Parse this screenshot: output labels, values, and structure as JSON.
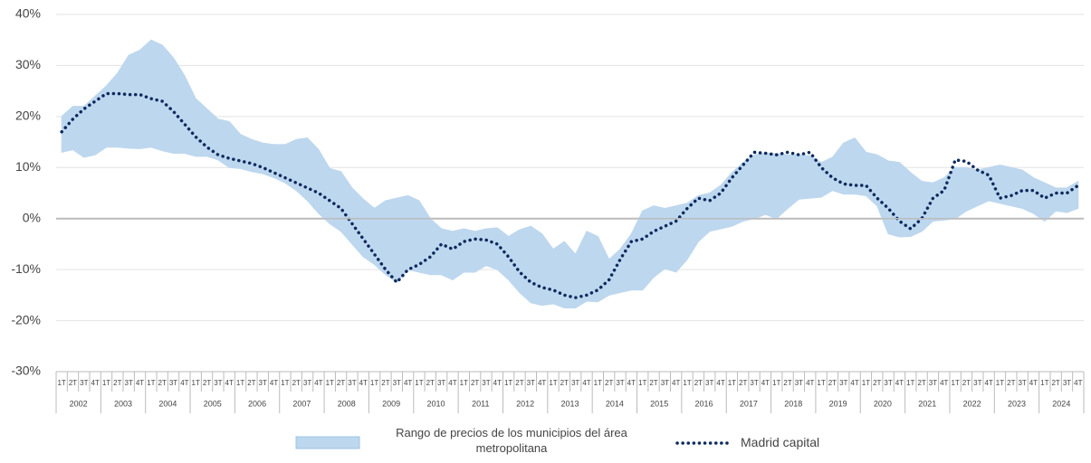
{
  "chart_data": {
    "type": "band_line",
    "ylim": [
      -30,
      40
    ],
    "yticks": [
      {
        "value": -30,
        "label": "-30%"
      },
      {
        "value": -20,
        "label": "-20%"
      },
      {
        "value": -10,
        "label": "-10%"
      },
      {
        "value": 0,
        "label": "0%"
      },
      {
        "value": 10,
        "label": "10%"
      },
      {
        "value": 20,
        "label": "20%"
      },
      {
        "value": 30,
        "label": "30%"
      },
      {
        "value": 40,
        "label": "40%"
      }
    ],
    "grid": true,
    "categories": [
      "1T",
      "2T",
      "3T",
      "4T",
      "1T",
      "2T",
      "3T",
      "4T",
      "1T",
      "2T",
      "3T",
      "4T",
      "1T",
      "2T",
      "3T",
      "4T",
      "1T",
      "2T",
      "3T",
      "4T",
      "1T",
      "2T",
      "3T",
      "4T",
      "1T",
      "2T",
      "3T",
      "4T",
      "1T",
      "2T",
      "3T",
      "4T",
      "1T",
      "2T",
      "3T",
      "4T",
      "1T",
      "2T",
      "3T",
      "4T",
      "1T",
      "2T",
      "3T",
      "4T",
      "1T",
      "2T",
      "3T",
      "4T",
      "1T",
      "2T",
      "3T",
      "4T",
      "1T",
      "2T",
      "3T",
      "4T",
      "1T",
      "2T",
      "3T",
      "4T",
      "1T",
      "2T",
      "3T",
      "4T",
      "1T",
      "2T",
      "3T",
      "4T",
      "1T",
      "2T",
      "3T",
      "4T",
      "1T",
      "2T",
      "3T",
      "4T",
      "1T",
      "2T",
      "3T",
      "4T",
      "1T",
      "2T",
      "3T",
      "4T",
      "1T",
      "2T",
      "3T",
      "4T",
      "1T",
      "2T",
      "3T",
      "4T"
    ],
    "years": [
      "2002",
      "2003",
      "2004",
      "2005",
      "2006",
      "2007",
      "2008",
      "2009",
      "2010",
      "2011",
      "2012",
      "2013",
      "2014",
      "2015",
      "2016",
      "2017",
      "2018",
      "2019",
      "2020",
      "2021",
      "2022",
      "2023",
      "2024"
    ],
    "series": [
      {
        "name": "Rango de precios de los municipios del área metropolitana",
        "kind": "range",
        "color": "#bdd7ee",
        "low": [
          13,
          13.5,
          12,
          12.5,
          14,
          14,
          13.8,
          13.7,
          14,
          13.3,
          12.8,
          12.8,
          12.2,
          12.2,
          11.5,
          10,
          9.8,
          9.2,
          8.8,
          8,
          7,
          5.5,
          3.5,
          1,
          -1,
          -2.5,
          -5,
          -7.5,
          -9,
          -11,
          -12.5,
          -10,
          -10.5,
          -11,
          -11,
          -12,
          -10.5,
          -10.5,
          -9.2,
          -10,
          -12,
          -14.5,
          -16.5,
          -17,
          -16.7,
          -17.5,
          -17.5,
          -16.2,
          -16.3,
          -15,
          -14.5,
          -14,
          -14,
          -11.5,
          -9.8,
          -10.5,
          -8,
          -4.5,
          -2.5,
          -2,
          -1.5,
          -0.5,
          0,
          0.8,
          0,
          2,
          3.8,
          4,
          4.2,
          5.5,
          4.8,
          4.8,
          4.5,
          2.5,
          -3,
          -3.6,
          -3.5,
          -2.5,
          -0.5,
          -0.3,
          0,
          1.5,
          2.5,
          3.5,
          3,
          2.5,
          2,
          1,
          -0.5,
          1.5,
          1.2,
          2
        ],
        "high": [
          20,
          22,
          22,
          24,
          26,
          28.5,
          32,
          33,
          35,
          34,
          31.5,
          28,
          23.5,
          21.5,
          19.5,
          19,
          16.5,
          15.5,
          14.8,
          14.5,
          14.5,
          15.5,
          15.8,
          13.5,
          9.8,
          9.2,
          6,
          3.8,
          2,
          3.5,
          4,
          4.5,
          3.5,
          0,
          -2,
          -2.5,
          -2,
          -2.5,
          -2,
          -1.8,
          -3.5,
          -2.2,
          -1.5,
          -3,
          -6,
          -4.5,
          -7,
          -2.5,
          -3.5,
          -8,
          -6,
          -3,
          1.5,
          2.5,
          2,
          2.5,
          3,
          4.5,
          5,
          6.5,
          9,
          11,
          12.5,
          12.8,
          12.7,
          12.5,
          12.5,
          12.3,
          11,
          12,
          14.8,
          15.8,
          13,
          12.5,
          11.3,
          11,
          9,
          7.3,
          7,
          8,
          10,
          10,
          9.5,
          10,
          10.5,
          10,
          9.5,
          8,
          7,
          6,
          6,
          7.3
        ]
      },
      {
        "name": "Madrid capital",
        "kind": "line",
        "color": "#0d2a5e",
        "values": [
          17,
          19.5,
          21.5,
          23,
          24.5,
          24.5,
          24.3,
          24.3,
          23.5,
          23,
          21,
          18.5,
          16,
          14,
          12.5,
          11.8,
          11.3,
          10.8,
          10,
          9,
          8,
          7,
          6,
          5,
          3.5,
          2,
          -1,
          -4,
          -7,
          -10,
          -12.5,
          -10,
          -9,
          -7.5,
          -5,
          -6,
          -4.5,
          -4,
          -4.2,
          -5,
          -7.5,
          -10.5,
          -12.5,
          -13.5,
          -14,
          -15,
          -15.5,
          -15,
          -14,
          -12,
          -8,
          -4.5,
          -4,
          -2.5,
          -1.5,
          -0.5,
          2,
          4,
          3.5,
          5,
          8,
          10.5,
          13,
          12.8,
          12.5,
          13,
          12.5,
          13,
          10,
          8,
          6.8,
          6.5,
          6.5,
          4,
          2,
          -0.5,
          -2,
          0,
          4,
          5.5,
          11.5,
          11.2,
          9.5,
          8.5,
          4,
          4.5,
          5.5,
          5.5,
          4,
          5,
          5,
          6.5
        ]
      }
    ]
  }
}
